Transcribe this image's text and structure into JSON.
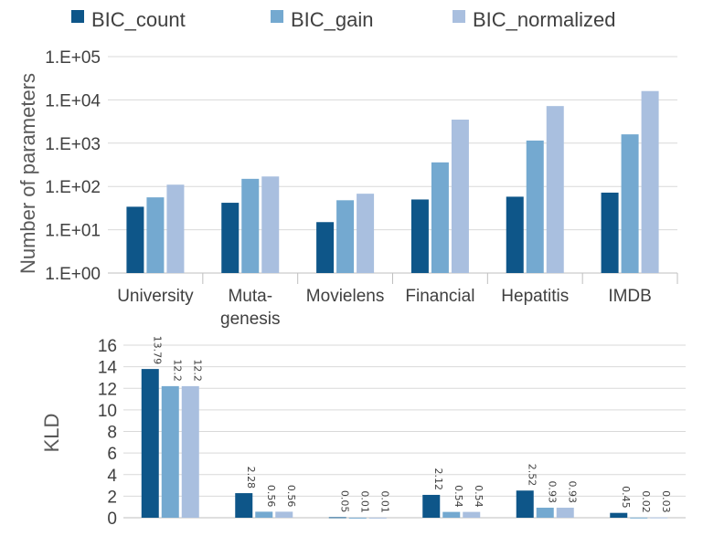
{
  "legend": [
    {
      "name": "BIC_count",
      "color": "#0e5689"
    },
    {
      "name": "BIC_gain",
      "color": "#74a9d0"
    },
    {
      "name": "BIC_normalized",
      "color": "#a9bfdf"
    }
  ],
  "chart_data": [
    {
      "type": "bar",
      "scale": "log",
      "ylabel": "Number of parameters",
      "ylim": [
        1,
        100000
      ],
      "yticks": [
        "1.E+00",
        "1.E+01",
        "1.E+02",
        "1.E+03",
        "1.E+04",
        "1.E+05"
      ],
      "grid": true,
      "legend_position": "top",
      "categories": [
        [
          "University"
        ],
        [
          "Muta-",
          "genesis"
        ],
        [
          "Movielens"
        ],
        [
          "Financial"
        ],
        [
          "Hepatitis"
        ],
        [
          "IMDB"
        ]
      ],
      "series": [
        {
          "name": "BIC_count",
          "values": [
            34,
            42,
            15,
            50,
            58,
            72
          ]
        },
        {
          "name": "BIC_gain",
          "values": [
            56,
            150,
            48,
            360,
            1150,
            1600
          ]
        },
        {
          "name": "BIC_normalized",
          "values": [
            110,
            170,
            68,
            3500,
            7200,
            16000
          ]
        }
      ]
    },
    {
      "type": "bar",
      "ylabel": "KLD",
      "ylim": [
        0,
        16
      ],
      "yticks": [
        "0",
        "2",
        "4",
        "6",
        "8",
        "10",
        "12",
        "14",
        "16"
      ],
      "grid": true,
      "categories": [
        "University",
        "Mutagenesis",
        "Movielens",
        "Financial",
        "Hepatitis",
        "IMDB"
      ],
      "series": [
        {
          "name": "BIC_count",
          "values": [
            13.79,
            2.28,
            0.05,
            2.12,
            2.52,
            0.45
          ],
          "labels": [
            "13.79",
            "2.28",
            "0.05",
            "2.12",
            "2.52",
            "0.45"
          ]
        },
        {
          "name": "BIC_gain",
          "values": [
            12.2,
            0.56,
            0.01,
            0.54,
            0.93,
            0.02
          ],
          "labels": [
            "12.2",
            "0.56",
            "0.01",
            "0.54",
            "0.93",
            "0.02"
          ]
        },
        {
          "name": "BIC_normalized",
          "values": [
            12.2,
            0.56,
            0.01,
            0.54,
            0.93,
            0.03
          ],
          "labels": [
            "12.2",
            "0.56",
            "0.01",
            "0.54",
            "0.93",
            "0.03"
          ]
        }
      ]
    }
  ]
}
